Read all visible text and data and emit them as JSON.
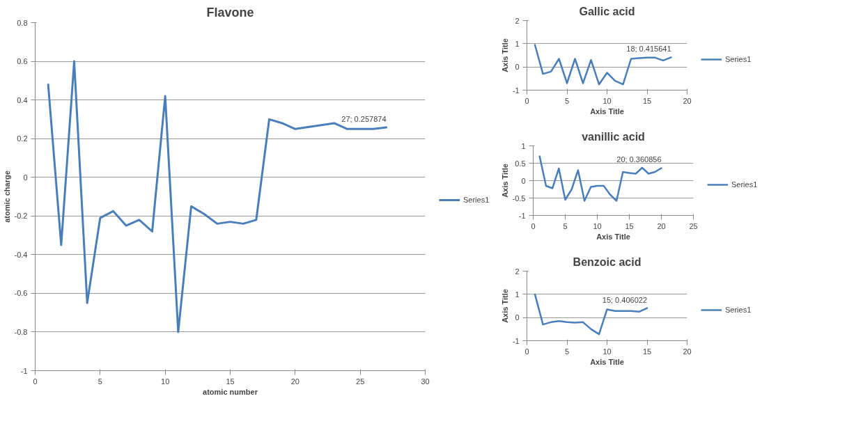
{
  "chart_data": [
    {
      "type": "line",
      "title": "Flavone",
      "xlabel": "atomic number",
      "ylabel": "atomic charge",
      "x": [
        1,
        2,
        3,
        4,
        5,
        6,
        7,
        8,
        9,
        10,
        11,
        12,
        13,
        14,
        15,
        16,
        17,
        18,
        19,
        20,
        21,
        22,
        23,
        24,
        25,
        26,
        27
      ],
      "xlim": [
        0,
        30
      ],
      "xticks": [
        0,
        5,
        10,
        15,
        20,
        25,
        30
      ],
      "ylim": [
        -1,
        0.8
      ],
      "yticks": [
        -1,
        -0.8,
        -0.6,
        -0.4,
        -0.2,
        0,
        0.2,
        0.4,
        0.6,
        0.8
      ],
      "grid": "y",
      "legend": "right",
      "series": [
        {
          "name": "Series1",
          "color": "#4a7ebb",
          "values": [
            0.48,
            -0.35,
            0.6,
            -0.65,
            -0.21,
            -0.175,
            -0.25,
            -0.22,
            -0.28,
            0.42,
            -0.8,
            -0.15,
            -0.19,
            -0.24,
            -0.23,
            -0.24,
            -0.22,
            0.3,
            0.28,
            0.25,
            0.26,
            0.27,
            0.28,
            0.25,
            0.25,
            0.25,
            0.257874
          ],
          "value_labels": [
            null,
            null,
            null,
            null,
            null,
            null,
            null,
            null,
            null,
            null,
            null,
            null,
            null,
            null,
            null,
            null,
            null,
            null,
            null,
            null,
            null,
            null,
            null,
            null,
            null,
            null,
            "27; 0.257874"
          ]
        }
      ]
    },
    {
      "type": "line",
      "title": "Gallic acid",
      "xlabel": "Axis Title",
      "ylabel": "Axis Title",
      "x": [
        1,
        2,
        3,
        4,
        5,
        6,
        7,
        8,
        9,
        10,
        11,
        12,
        13,
        14,
        15,
        16,
        17,
        18
      ],
      "xlim": [
        0,
        20
      ],
      "xticks": [
        0,
        5,
        10,
        15,
        20
      ],
      "ylim": [
        -1,
        2
      ],
      "yticks": [
        -1,
        0,
        1,
        2
      ],
      "grid": "y",
      "legend": "right",
      "series": [
        {
          "name": "Series1",
          "color": "#4a7ebb",
          "values": [
            0.95,
            -0.3,
            -0.2,
            0.35,
            -0.7,
            0.35,
            -0.7,
            0.3,
            -0.75,
            -0.25,
            -0.6,
            -0.75,
            0.35,
            0.38,
            0.4,
            0.4,
            0.28,
            0.415641
          ],
          "value_labels": [
            null,
            null,
            null,
            null,
            null,
            null,
            null,
            null,
            null,
            null,
            null,
            null,
            null,
            null,
            null,
            null,
            null,
            "18; 0.415641"
          ]
        }
      ]
    },
    {
      "type": "line",
      "title": "vanillic acid",
      "xlabel": "Axis Title",
      "ylabel": "Axis Title",
      "x": [
        1,
        2,
        3,
        4,
        5,
        6,
        7,
        8,
        9,
        10,
        11,
        12,
        13,
        14,
        15,
        16,
        17,
        18,
        19,
        20
      ],
      "xlim": [
        0,
        25
      ],
      "xticks": [
        0,
        5,
        10,
        15,
        20,
        25
      ],
      "ylim": [
        -1,
        1
      ],
      "yticks": [
        -1,
        -0.5,
        0,
        0.5,
        1
      ],
      "grid": "y",
      "legend": "right",
      "series": [
        {
          "name": "Series1",
          "color": "#4a7ebb",
          "values": [
            0.7,
            -0.15,
            -0.22,
            0.35,
            -0.55,
            -0.25,
            0.3,
            -0.58,
            -0.18,
            -0.15,
            -0.15,
            -0.4,
            -0.58,
            0.25,
            0.22,
            0.2,
            0.37,
            0.2,
            0.25,
            0.360856
          ],
          "value_labels": [
            null,
            null,
            null,
            null,
            null,
            null,
            null,
            null,
            null,
            null,
            null,
            null,
            null,
            null,
            null,
            null,
            null,
            null,
            null,
            "20; 0.360856"
          ]
        }
      ]
    },
    {
      "type": "line",
      "title": "Benzoic acid",
      "xlabel": "Axis Title",
      "ylabel": "Axis Title",
      "x": [
        1,
        2,
        3,
        4,
        5,
        6,
        7,
        8,
        9,
        10,
        11,
        12,
        13,
        14,
        15
      ],
      "xlim": [
        0,
        20
      ],
      "xticks": [
        0,
        5,
        10,
        15,
        20
      ],
      "ylim": [
        -1,
        2
      ],
      "yticks": [
        -1,
        0,
        1,
        2
      ],
      "grid": "y",
      "legend": "right",
      "series": [
        {
          "name": "Series1",
          "color": "#4a7ebb",
          "values": [
            1.0,
            -0.3,
            -0.2,
            -0.15,
            -0.2,
            -0.22,
            -0.2,
            -0.5,
            -0.72,
            0.35,
            0.28,
            0.28,
            0.28,
            0.25,
            0.406022
          ],
          "value_labels": [
            null,
            null,
            null,
            null,
            null,
            null,
            null,
            null,
            null,
            null,
            null,
            null,
            null,
            null,
            "15; 0.406022"
          ]
        }
      ]
    }
  ]
}
